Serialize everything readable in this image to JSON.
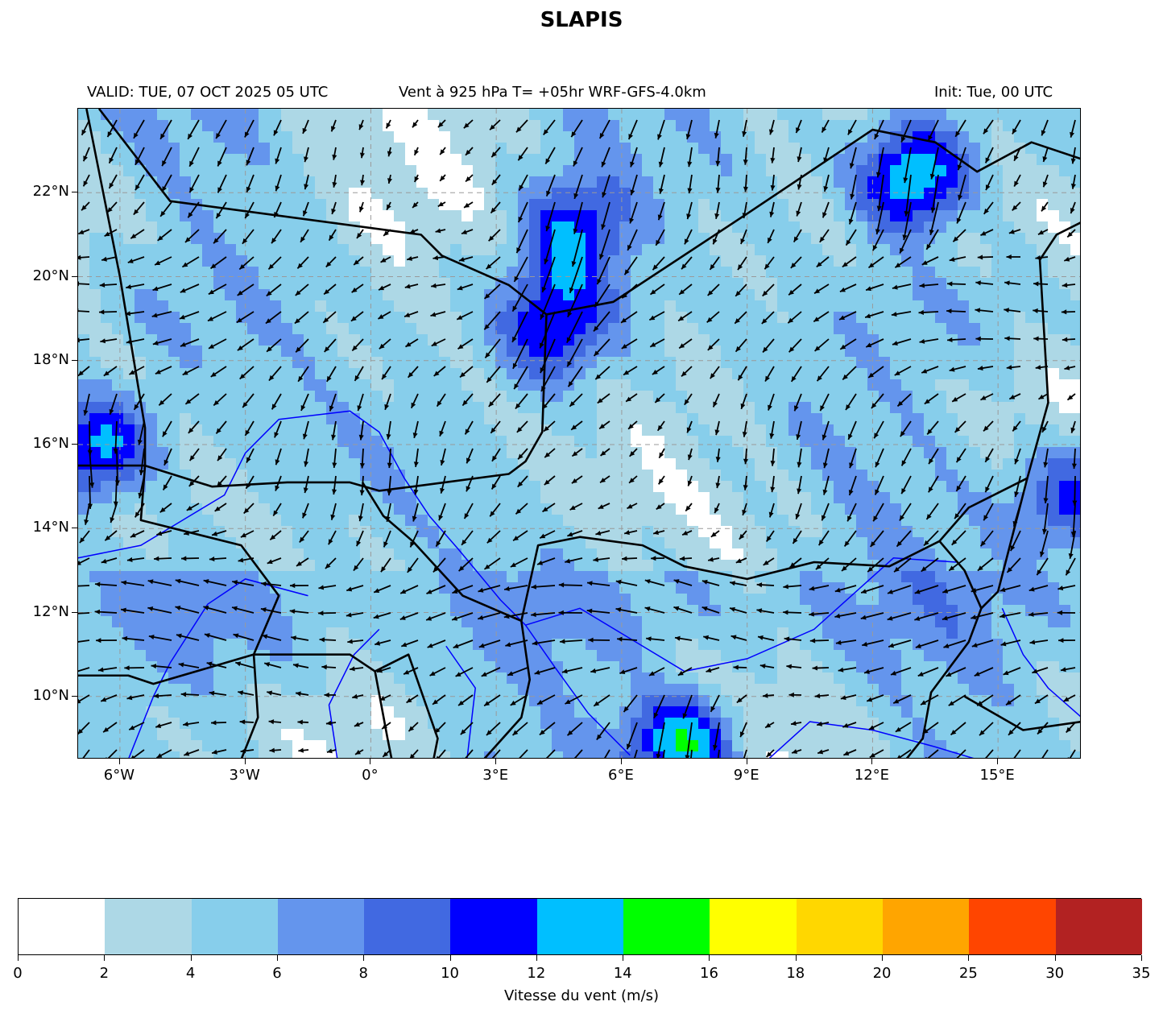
{
  "title": "SLAPIS",
  "subtitle_left": "VALID: TUE, 07 OCT 2025 05 UTC",
  "subtitle_center": "Vent à 925 hPa T= +05hr  WRF-GFS-4.0km",
  "subtitle_right": "Init: Tue, 00 UTC",
  "map": {
    "lon_range": [
      -7,
      17
    ],
    "lat_range": [
      8.5,
      24
    ],
    "lon_ticks": [
      -6,
      -3,
      0,
      3,
      6,
      9,
      12,
      15
    ],
    "lat_ticks": [
      10,
      12,
      14,
      16,
      18,
      20,
      22
    ],
    "lon_tick_labels": [
      "6°W",
      "3°W",
      "0°",
      "3°E",
      "6°E",
      "9°E",
      "12°E",
      "15°E"
    ],
    "lat_tick_labels": [
      "10°N",
      "12°N",
      "14°N",
      "16°N",
      "18°N",
      "20°N",
      "22°N"
    ],
    "gridlines": true,
    "border_color": "#000000",
    "river_color": "#0000ff",
    "arrow_color": "#000000"
  },
  "colorbar": {
    "label": "Vitesse du vent (m/s)",
    "bounds": [
      0,
      2,
      4,
      6,
      8,
      10,
      12,
      14,
      16,
      18,
      20,
      25,
      30,
      35
    ],
    "tick_labels": [
      "0",
      "2",
      "4",
      "6",
      "8",
      "10",
      "12",
      "14",
      "16",
      "18",
      "20",
      "25",
      "30",
      "35"
    ],
    "colors": [
      "#ffffff",
      "#add8e6",
      "#87ceeb",
      "#6495ed",
      "#4169e1",
      "#0000ff",
      "#00bfff",
      "#00ff00",
      "#ffff00",
      "#ffd700",
      "#ffa500",
      "#ff4500",
      "#b22222"
    ]
  },
  "wind_features": [
    {
      "lon": -6.5,
      "lat": 16.0,
      "speed": 12,
      "note": "band"
    },
    {
      "lon": 4.3,
      "lat": 18.8,
      "speed": 12
    },
    {
      "lon": 4.8,
      "lat": 21.0,
      "speed": 11
    },
    {
      "lon": 13.0,
      "lat": 22.3,
      "speed": 14
    },
    {
      "lon": 7.5,
      "lat": 9.0,
      "speed": 14
    },
    {
      "lon": 16.8,
      "lat": 14.6,
      "speed": 10
    }
  ]
}
